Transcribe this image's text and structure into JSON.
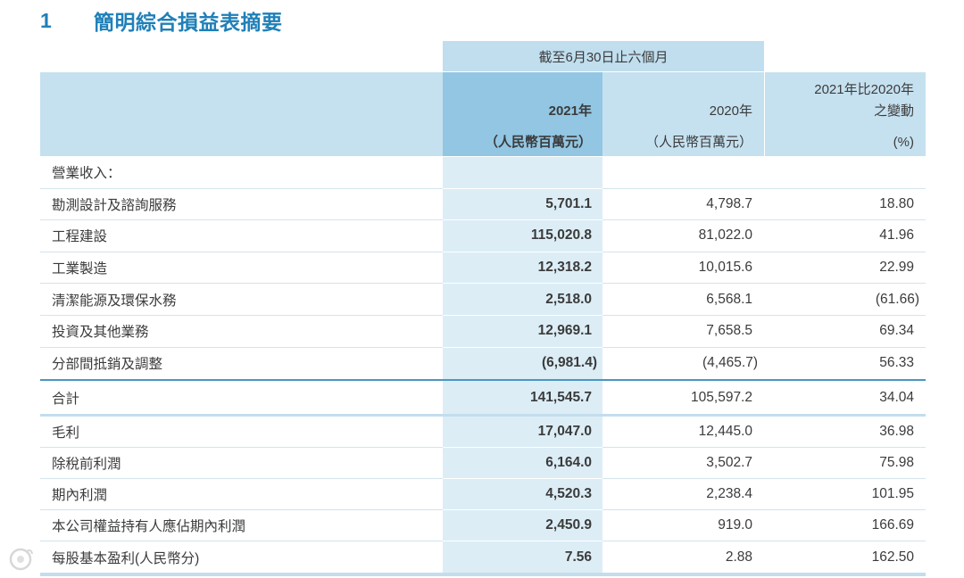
{
  "title": {
    "number": "1",
    "text": "簡明綜合損益表摘要"
  },
  "table": {
    "period_header": "截至6月30日止六個月",
    "columns": [
      {
        "year": "2021年",
        "unit": "（人民幣百萬元）"
      },
      {
        "year": "2020年",
        "unit": "（人民幣百萬元）"
      },
      {
        "line1": "2021年比2020年",
        "line2": "之變動",
        "unit": "(%)"
      }
    ],
    "section_label": "營業收入：",
    "revenue_rows": [
      {
        "label": "勘測設計及諮詢服務",
        "y2021": "5,701.1",
        "y2020": "4,798.7",
        "change": "18.80"
      },
      {
        "label": "工程建設",
        "y2021": "115,020.8",
        "y2020": "81,022.0",
        "change": "41.96"
      },
      {
        "label": "工業製造",
        "y2021": "12,318.2",
        "y2020": "10,015.6",
        "change": "22.99"
      },
      {
        "label": "清潔能源及環保水務",
        "y2021": "2,518.0",
        "y2020": "6,568.1",
        "change": "(61.66)"
      },
      {
        "label": "投資及其他業務",
        "y2021": "12,969.1",
        "y2020": "7,658.5",
        "change": "69.34"
      },
      {
        "label": "分部間抵銷及調整",
        "y2021": "(6,981.4)",
        "y2020": "(4,465.7)",
        "change": "56.33"
      }
    ],
    "total_row": {
      "label": "合計",
      "y2021": "141,545.7",
      "y2020": "105,597.2",
      "change": "34.04"
    },
    "profit_rows": [
      {
        "label": "毛利",
        "y2021": "17,047.0",
        "y2020": "12,445.0",
        "change": "36.98"
      },
      {
        "label": "除稅前利潤",
        "y2021": "6,164.0",
        "y2020": "3,502.7",
        "change": "75.98"
      },
      {
        "label": "期內利潤",
        "y2021": "4,520.3",
        "y2020": "2,238.4",
        "change": "101.95"
      },
      {
        "label": "本公司權益持有人應佔期內利潤",
        "y2021": "2,450.9",
        "y2020": "919.0",
        "change": "166.69"
      },
      {
        "label": "每股基本盈利(人民幣分)",
        "y2021": "7.56",
        "y2020": "2.88",
        "change": "162.50"
      }
    ]
  },
  "icons": {
    "watermark": "watermark-logo-icon"
  },
  "colors": {
    "title": "#1f80b8",
    "header_bg": "#c5e1f0",
    "period_bg": "#c0deee",
    "highlight_header_bg": "#92c6e3",
    "highlight_column_bg": "#dcedf6",
    "total_rule": "#4a96c0",
    "band": "#c3dded",
    "text": "#3b3b3b"
  }
}
